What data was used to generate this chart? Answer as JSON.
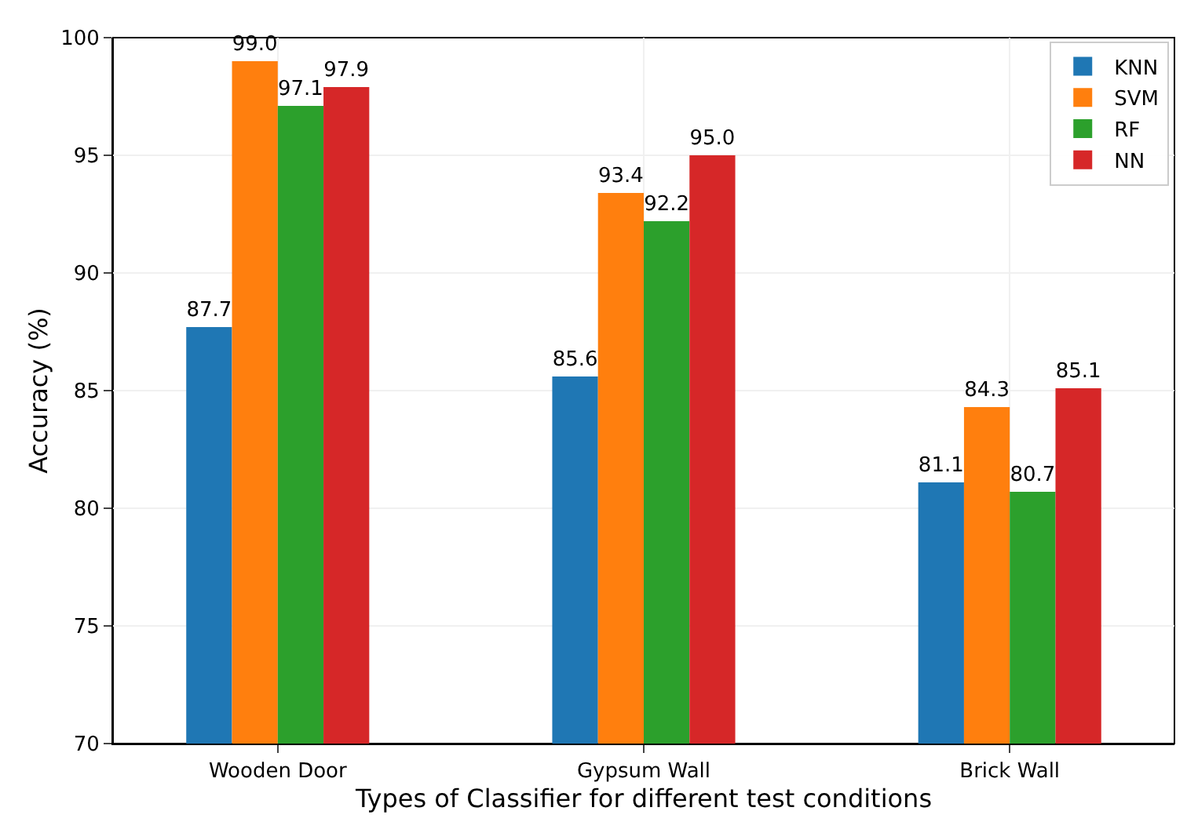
{
  "chart_data": {
    "type": "bar",
    "xlabel": "Types of Classifier for different test conditions",
    "ylabel": "Accuracy (%)",
    "categories": [
      "Wooden Door",
      "Gypsum Wall",
      "Brick Wall"
    ],
    "series": [
      {
        "name": "KNN",
        "color": "#1f77b4",
        "values": [
          87.7,
          85.6,
          81.1
        ],
        "value_labels": [
          "87.7",
          "85.6",
          "81.1"
        ]
      },
      {
        "name": "SVM",
        "color": "#ff7f0e",
        "values": [
          99.0,
          93.4,
          84.3
        ],
        "value_labels": [
          "99.0",
          "93.4",
          "84.3"
        ]
      },
      {
        "name": "RF",
        "color": "#2ca02c",
        "values": [
          97.1,
          92.2,
          80.7
        ],
        "value_labels": [
          "97.1",
          "92.2",
          "80.7"
        ]
      },
      {
        "name": "NN",
        "color": "#d62728",
        "values": [
          97.9,
          95.0,
          85.1
        ],
        "value_labels": [
          "97.9",
          "95.0",
          "85.1"
        ]
      }
    ],
    "ylim": [
      70,
      100
    ],
    "yticks": [
      70,
      75,
      80,
      85,
      90,
      95,
      100
    ],
    "grid": true,
    "legend": "top right"
  }
}
